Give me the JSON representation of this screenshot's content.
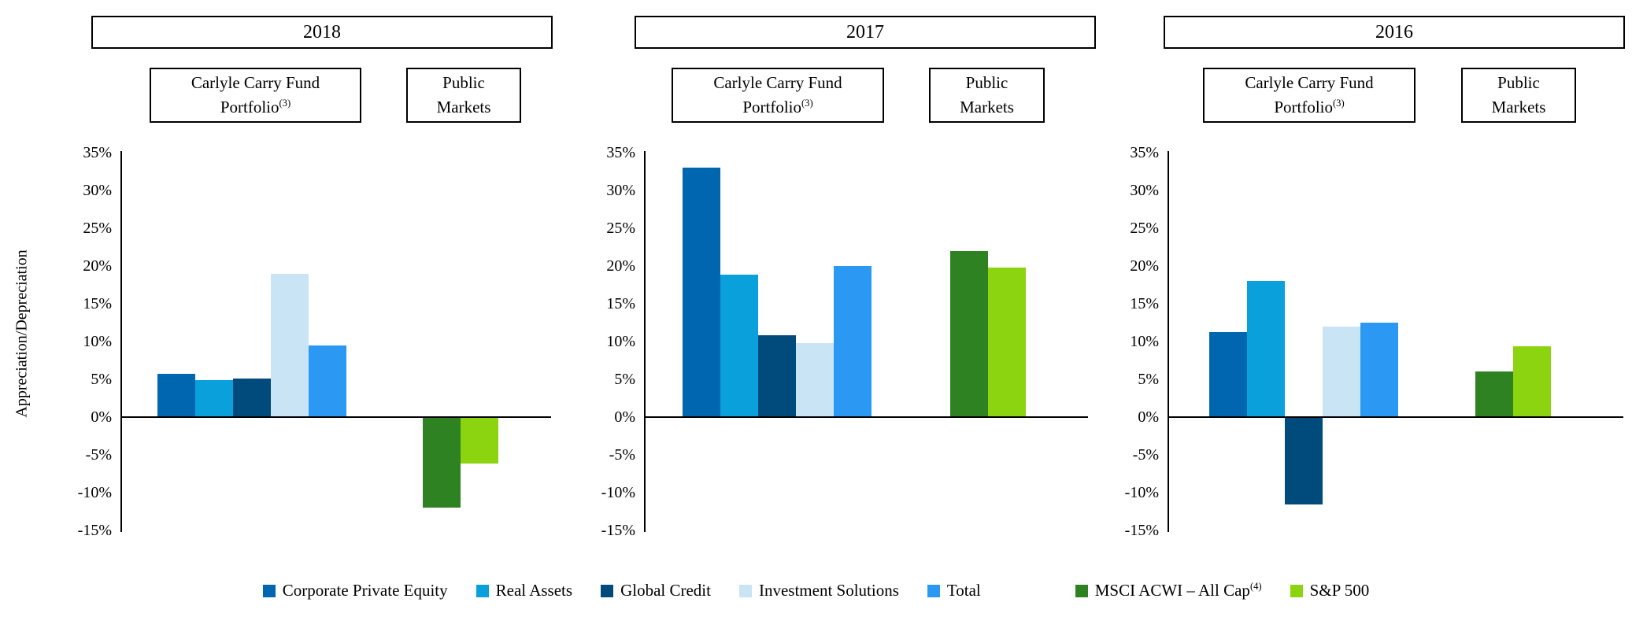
{
  "figure": {
    "y_axis_label": "Appreciation/Depreciation",
    "yticks": [
      "35%",
      "30%",
      "25%",
      "20%",
      "15%",
      "10%",
      "5%",
      "0%",
      "-5%",
      "-10%",
      "-15%"
    ]
  },
  "panels": [
    {
      "year": "2018",
      "carry_header_line1": "Carlyle Carry Fund",
      "carry_header_line2": "Portfolio",
      "carry_header_sup": "(3)",
      "public_header_line1": "Public",
      "public_header_line2": "Markets"
    },
    {
      "year": "2017",
      "carry_header_line1": "Carlyle Carry Fund",
      "carry_header_line2": "Portfolio",
      "carry_header_sup": "(3)",
      "public_header_line1": "Public",
      "public_header_line2": "Markets"
    },
    {
      "year": "2016",
      "carry_header_line1": "Carlyle Carry Fund",
      "carry_header_line2": "Portfolio",
      "carry_header_sup": "(3)",
      "public_header_line1": "Public",
      "public_header_line2": "Markets"
    }
  ],
  "chart_data": {
    "type": "bar",
    "ylabel": "Appreciation/Depreciation",
    "unit": "percent",
    "ylim": [
      -15,
      35
    ],
    "ytick_step": 5,
    "grid": false,
    "legend_position": "bottom",
    "categories": [
      "2018",
      "2017",
      "2016"
    ],
    "groups": [
      {
        "id": "carry",
        "label": "Carlyle Carry Fund Portfolio",
        "label_sup": "(3)"
      },
      {
        "id": "public",
        "label": "Public Markets"
      }
    ],
    "series": [
      {
        "name": "Corporate Private Equity",
        "group": "carry",
        "color": "#0066B0",
        "values": [
          5.7,
          33.0,
          11.2
        ]
      },
      {
        "name": "Real Assets",
        "group": "carry",
        "color": "#0AA0DB",
        "values": [
          4.9,
          18.9,
          18.0
        ]
      },
      {
        "name": "Global Credit",
        "group": "carry",
        "color": "#004A7C",
        "values": [
          5.1,
          10.8,
          -11.5
        ]
      },
      {
        "name": "Investment Solutions",
        "group": "carry",
        "color": "#C8E4F5",
        "values": [
          19.0,
          9.8,
          12.0
        ]
      },
      {
        "name": "Total",
        "group": "carry",
        "color": "#2B99F3",
        "values": [
          9.5,
          20.0,
          12.5
        ]
      },
      {
        "name": "MSCI ACWI – All Cap",
        "name_sup": "(4)",
        "group": "public",
        "color": "#2E8221",
        "values": [
          -11.9,
          22.0,
          6.0
        ]
      },
      {
        "name": "S&P 500",
        "group": "public",
        "color": "#8CD410",
        "values": [
          -6.0,
          19.8,
          9.4
        ]
      }
    ]
  }
}
